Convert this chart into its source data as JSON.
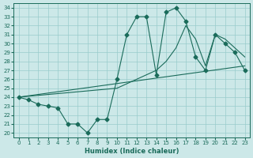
{
  "xlabel": "Humidex (Indice chaleur)",
  "bg_color": "#cce8e8",
  "grid_color": "#99cccc",
  "line_color": "#1a6b5a",
  "xlim": [
    -0.5,
    23.5
  ],
  "ylim": [
    19.5,
    34.5
  ],
  "xticks": [
    0,
    1,
    2,
    3,
    4,
    5,
    6,
    7,
    8,
    9,
    10,
    11,
    12,
    13,
    14,
    15,
    16,
    17,
    18,
    19,
    20,
    21,
    22,
    23
  ],
  "yticks": [
    20,
    21,
    22,
    23,
    24,
    25,
    26,
    27,
    28,
    29,
    30,
    31,
    32,
    33,
    34
  ],
  "line1_x": [
    0,
    1,
    2,
    3,
    4,
    5,
    6,
    7,
    8,
    9,
    10,
    11,
    12,
    13,
    14,
    15,
    16,
    17,
    18,
    19,
    20,
    21,
    22,
    23
  ],
  "line1_y": [
    24.0,
    23.7,
    23.2,
    23.0,
    22.8,
    21.0,
    21.0,
    20.0,
    21.5,
    21.5,
    26.0,
    31.0,
    33.0,
    33.0,
    26.5,
    33.5,
    34.0,
    32.5,
    28.5,
    27.0,
    31.0,
    30.0,
    29.0,
    27.0
  ],
  "line2_x": [
    0,
    23
  ],
  "line2_y": [
    24.0,
    27.5
  ],
  "line3_x": [
    0,
    10,
    11,
    12,
    13,
    14,
    15,
    16,
    17,
    18,
    19,
    20,
    21,
    22,
    23
  ],
  "line3_y": [
    24.0,
    25.0,
    25.5,
    26.0,
    26.5,
    27.0,
    28.0,
    29.5,
    32.0,
    30.5,
    27.5,
    31.0,
    30.5,
    29.5,
    28.5
  ]
}
